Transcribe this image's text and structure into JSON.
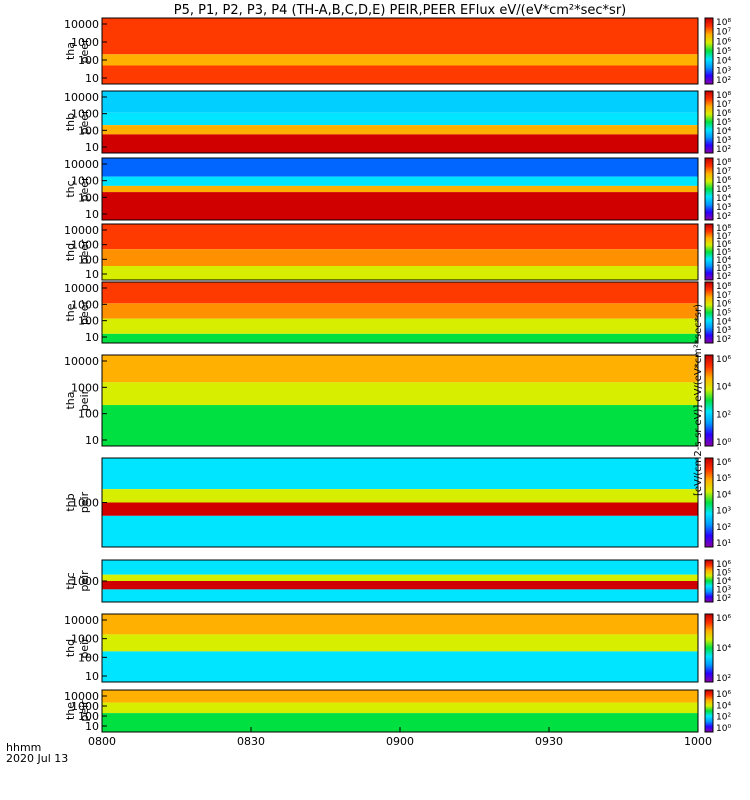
{
  "title": "P5, P1, P2, P3, P4 (TH-A,B,C,D,E) PEIR,PEER EFlux eV/(eV*cm²*sec*sr)",
  "colorbar_title": "[eV/(cm2-s-sr-eV)]  eV/(eV*cm²*sec*sr)",
  "bottom": {
    "hhmm": "hhmm",
    "date": "2020 Jul 13"
  },
  "chart_data": {
    "type": "heatmap",
    "x_ticks": [
      "0800",
      "0830",
      "0900",
      "0930",
      "1000"
    ],
    "x_range": [
      "0800",
      "1000"
    ],
    "colorscale": [
      "#8a00a8",
      "#2a00ff",
      "#0099ff",
      "#00e5ff",
      "#00e040",
      "#d8ee00",
      "#ffb000",
      "#ff3000",
      "#c00000"
    ],
    "panels": [
      {
        "name": "tha peer",
        "ylabel": [
          "tha",
          "peer"
        ],
        "yticks": [
          "10000",
          "1000",
          "100",
          "10"
        ],
        "cbar_ticks": [
          "10⁸",
          "10⁷",
          "10⁶",
          "10⁵",
          "10⁴",
          "10³",
          "10²"
        ]
      },
      {
        "name": "thb peer",
        "ylabel": [
          "thb",
          "peer"
        ],
        "yticks": [
          "10000",
          "1000",
          "100",
          "10"
        ],
        "cbar_ticks": [
          "10⁸",
          "10⁷",
          "10⁶",
          "10⁵",
          "10⁴",
          "10³",
          "10²"
        ]
      },
      {
        "name": "thc peer",
        "ylabel": [
          "thc",
          "peer"
        ],
        "yticks": [
          "10000",
          "1000",
          "100",
          "10"
        ],
        "cbar_ticks": [
          "10⁸",
          "10⁷",
          "10⁶",
          "10⁵",
          "10⁴",
          "10³",
          "10²"
        ]
      },
      {
        "name": "thd peer",
        "ylabel": [
          "thd",
          "peer"
        ],
        "yticks": [
          "10000",
          "1000",
          "100",
          "10"
        ],
        "cbar_ticks": [
          "10⁸",
          "10⁷",
          "10⁶",
          "10⁵",
          "10⁴",
          "10³",
          "10²"
        ]
      },
      {
        "name": "the peer",
        "ylabel": [
          "the",
          "peer"
        ],
        "yticks": [
          "10000",
          "1000",
          "100",
          "10"
        ],
        "cbar_ticks": [
          "10⁸",
          "10⁷",
          "10⁶",
          "10⁵",
          "10⁴",
          "10³",
          "10²"
        ]
      },
      {
        "name": "tha peir",
        "ylabel": [
          "tha",
          "peir"
        ],
        "yticks": [
          "10000",
          "1000",
          "100",
          "10"
        ],
        "cbar_ticks": [
          "10⁶",
          "10⁴",
          "10²",
          "10⁰"
        ]
      },
      {
        "name": "thb peir",
        "ylabel": [
          "thb",
          "peir"
        ],
        "yticks": [
          "1000"
        ],
        "cbar_ticks": [
          "10⁶",
          "10⁵",
          "10⁴",
          "10³",
          "10²",
          "10¹"
        ]
      },
      {
        "name": "thc peir",
        "ylabel": [
          "thc",
          "peir"
        ],
        "yticks": [
          "1000"
        ],
        "cbar_ticks": [
          "10⁶",
          "10⁵",
          "10⁴",
          "10³",
          "10²"
        ]
      },
      {
        "name": "thd peir",
        "ylabel": [
          "thd",
          "peir"
        ],
        "yticks": [
          "10000",
          "1000",
          "100",
          "10"
        ],
        "cbar_ticks": [
          "10⁶",
          "10⁴",
          "10²"
        ]
      },
      {
        "name": "the peir",
        "ylabel": [
          "the",
          "peir"
        ],
        "yticks": [
          "10000",
          "1000",
          "100",
          "10"
        ],
        "cbar_ticks": [
          "10⁶",
          "10⁴",
          "10²",
          "10⁰"
        ]
      }
    ]
  }
}
